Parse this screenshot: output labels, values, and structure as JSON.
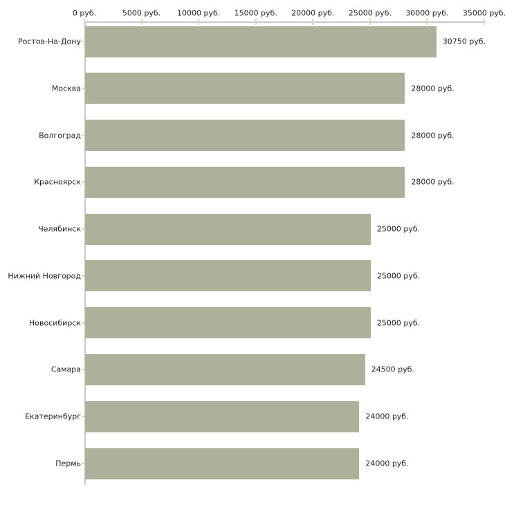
{
  "chart_data": {
    "type": "bar",
    "orientation": "horizontal",
    "title": "",
    "xlabel": "",
    "ylabel": "",
    "categories": [
      "Ростов-На-Дону",
      "Москва",
      "Волгоград",
      "Красноярск",
      "Челябинск",
      "Нижний Новгород",
      "Новосибирск",
      "Самара",
      "Екатеринбург",
      "Пермь"
    ],
    "values": [
      30750,
      28000,
      28000,
      28000,
      25000,
      25000,
      25000,
      24500,
      24000,
      24000
    ],
    "value_labels": [
      "30750 руб.",
      "28000 руб.",
      "28000 руб.",
      "28000 руб.",
      "25000 руб.",
      "25000 руб.",
      "25000 руб.",
      "24500 руб.",
      "24000 руб.",
      "24000 руб."
    ],
    "x_ticks": [
      0,
      5000,
      10000,
      15000,
      20000,
      25000,
      30000,
      35000
    ],
    "x_tick_labels": [
      "0 руб.",
      "5000 руб.",
      "10000 руб.",
      "15000 руб.",
      "20000 руб.",
      "25000 руб.",
      "30000 руб.",
      "35000 руб."
    ],
    "xlim": [
      0,
      35000
    ],
    "unit": "руб.",
    "grid": false,
    "legend": false,
    "axis_position": "top",
    "colors": {
      "bar": "#abb299",
      "axis_line": "#c9c9c9",
      "tick_mark": "#d8d8b8",
      "text": "#1f1f1f",
      "background": "#ffffff"
    }
  }
}
